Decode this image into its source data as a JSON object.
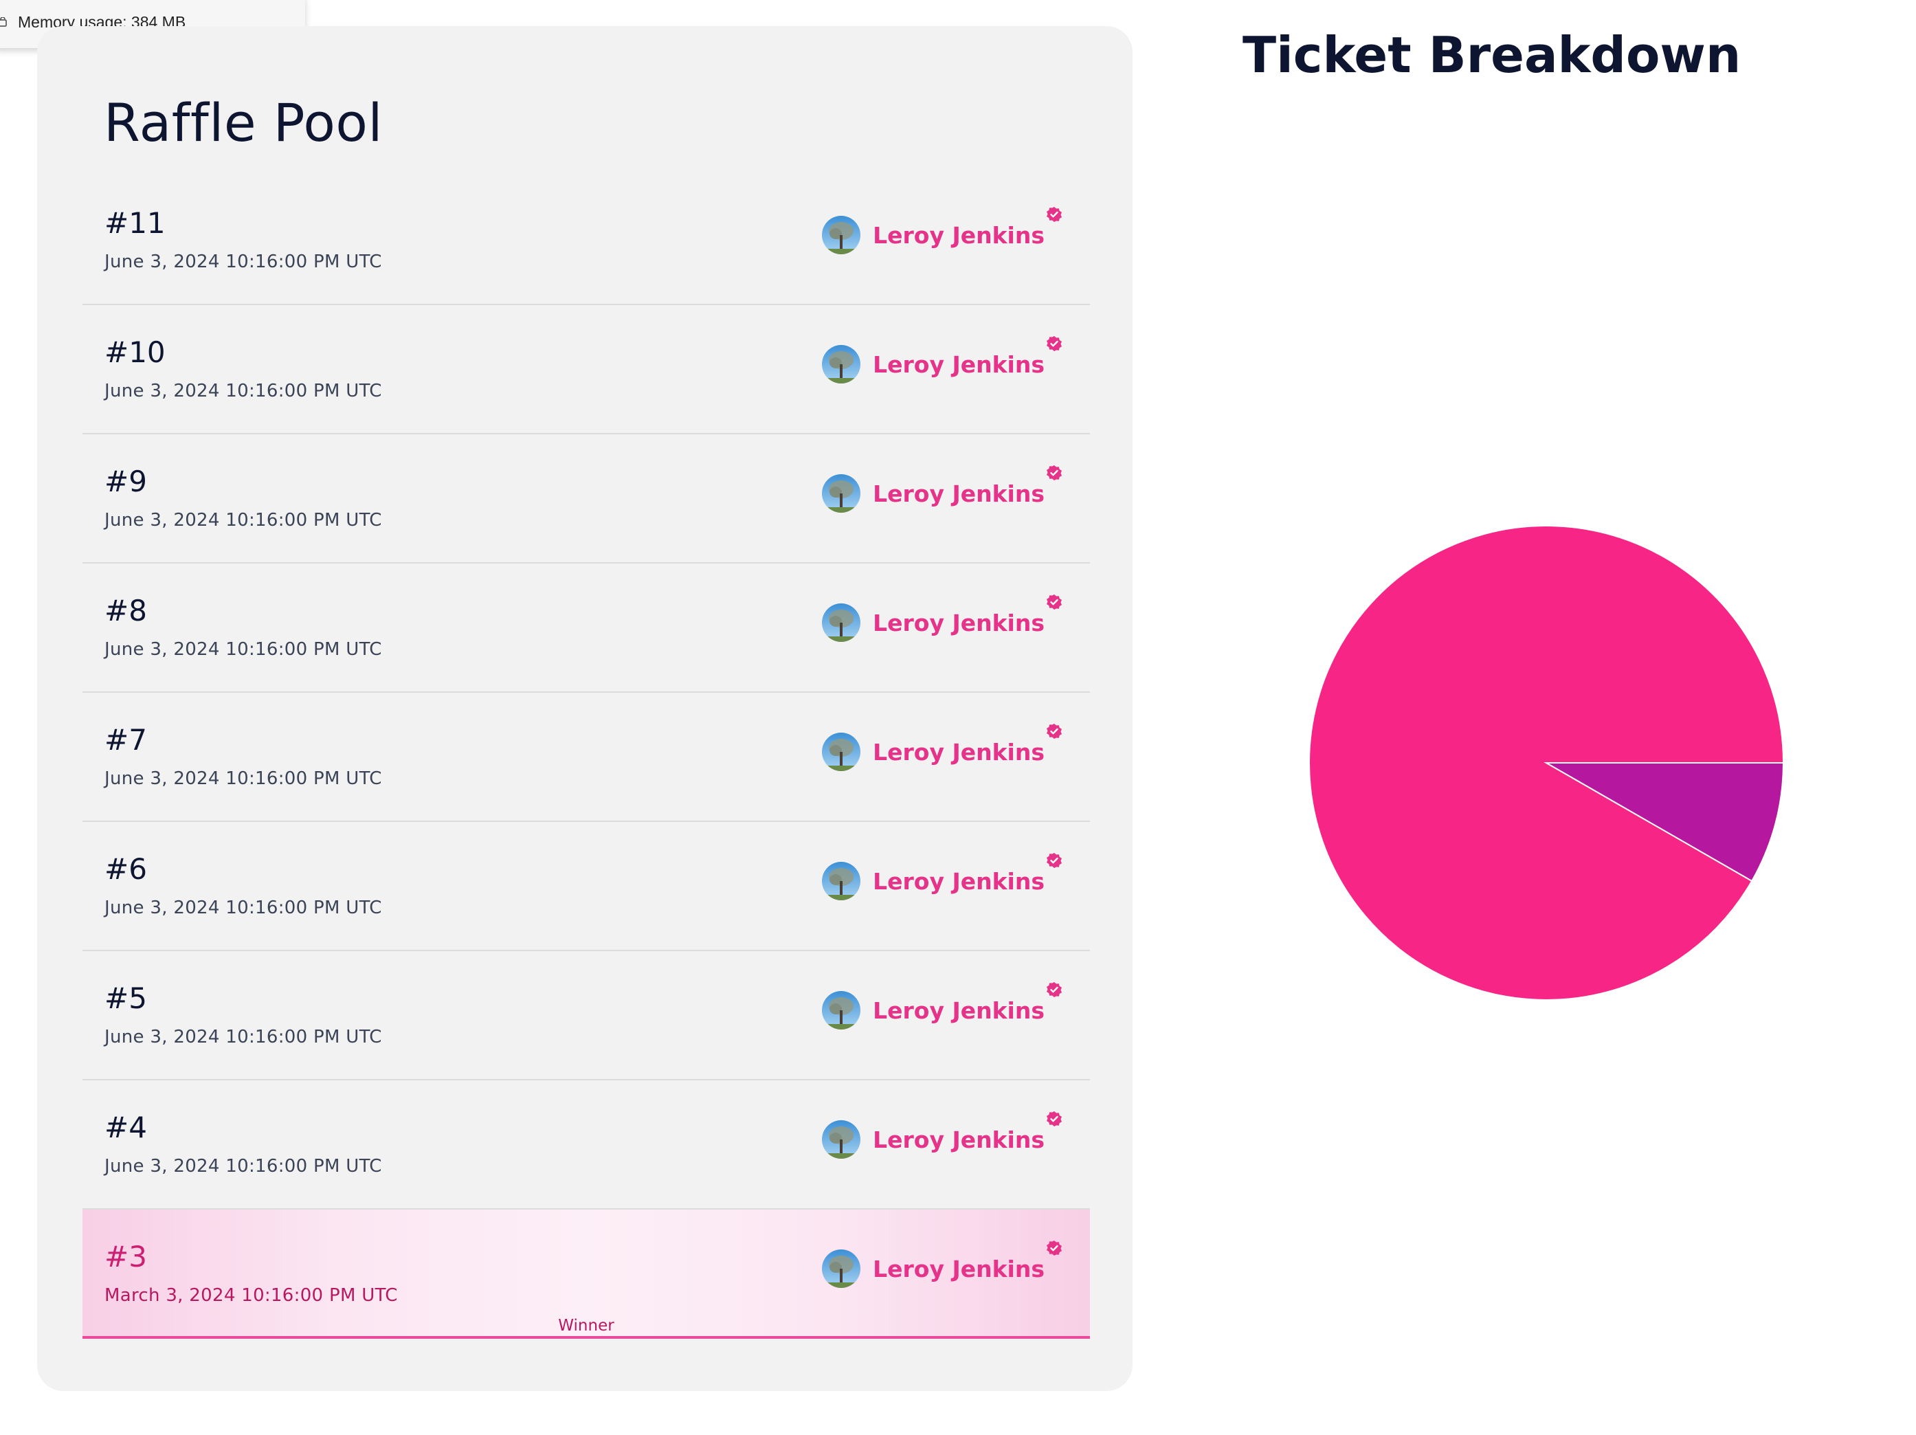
{
  "memory": {
    "text": "Memory usage: 384 MB"
  },
  "raffle": {
    "title": "Raffle Pool",
    "tickets": [
      {
        "number": "#11",
        "date": "June 3, 2024 10:16:00 PM UTC",
        "owner": "Leroy Jenkins",
        "winner": false
      },
      {
        "number": "#10",
        "date": "June 3, 2024 10:16:00 PM UTC",
        "owner": "Leroy Jenkins",
        "winner": false
      },
      {
        "number": "#9",
        "date": "June 3, 2024 10:16:00 PM UTC",
        "owner": "Leroy Jenkins",
        "winner": false
      },
      {
        "number": "#8",
        "date": "June 3, 2024 10:16:00 PM UTC",
        "owner": "Leroy Jenkins",
        "winner": false
      },
      {
        "number": "#7",
        "date": "June 3, 2024 10:16:00 PM UTC",
        "owner": "Leroy Jenkins",
        "winner": false
      },
      {
        "number": "#6",
        "date": "June 3, 2024 10:16:00 PM UTC",
        "owner": "Leroy Jenkins",
        "winner": false
      },
      {
        "number": "#5",
        "date": "June 3, 2024 10:16:00 PM UTC",
        "owner": "Leroy Jenkins",
        "winner": false
      },
      {
        "number": "#4",
        "date": "June 3, 2024 10:16:00 PM UTC",
        "owner": "Leroy Jenkins",
        "winner": false
      },
      {
        "number": "#3",
        "date": "March 3, 2024 10:16:00 PM UTC",
        "owner": "Leroy Jenkins",
        "winner": true,
        "badge": "Winner"
      }
    ]
  },
  "breakdown": {
    "title": "Ticket Breakdown"
  },
  "chart_data": {
    "type": "pie",
    "title": "Ticket Breakdown",
    "slices": [
      {
        "value": 91.7,
        "color": "#f72585"
      },
      {
        "value": 8.3,
        "color": "#b5179e"
      }
    ]
  },
  "colors": {
    "accent": "#e6338a",
    "winner_text": "#cc1f72",
    "card_bg": "#f2f2f2",
    "title": "#0d1530"
  }
}
